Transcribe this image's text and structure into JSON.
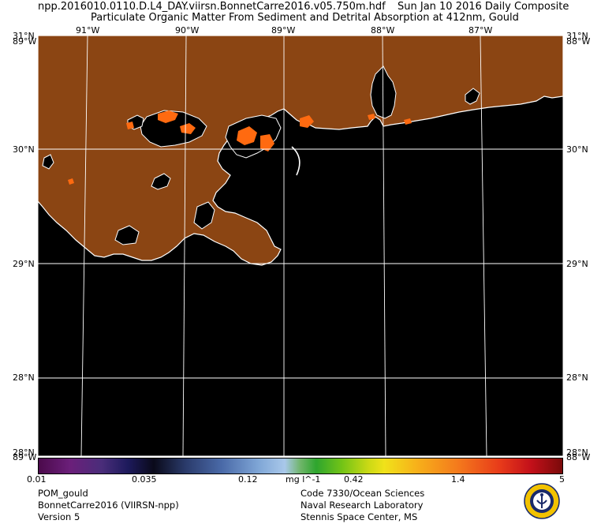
{
  "header": {
    "filename": "npp.2016010.0110.D.L4_DAY.viirsn.BonnetCarre2016.v05.750m.hdf",
    "date": "Sun Jan 10 2016 Daily Composite",
    "product": "Particulate Organic Matter From Sediment and Detrital Absorption at 412nm, Gould"
  },
  "map": {
    "lon_labels": [
      "91°W",
      "90°W",
      "89°W",
      "88°W",
      "87°W"
    ],
    "lat_labels": [
      "30°N",
      "29°N",
      "28°N"
    ],
    "corner_labels": {
      "top_left_lat": "31°N",
      "top_left_lon": "89°W",
      "top_right_lat": "31°N",
      "top_right_lon": "88°W",
      "bottom_left_lat": "28°N",
      "bottom_left_lon": "89°W",
      "bottom_right_lat": "28°N",
      "bottom_right_lon": "88°W"
    },
    "colors": {
      "land": "#8b4513",
      "water": "#000000",
      "coast": "#ffffff",
      "grid": "#ffffff",
      "high_pom": "#ff6a10"
    }
  },
  "colorbar": {
    "ticks": [
      "0.01",
      "0.035",
      "0.12",
      "0.42",
      "1.4",
      "5"
    ],
    "unit": "mg l^-1"
  },
  "footer": {
    "left": [
      "POM_gould",
      "BonnetCarre2016 (VIIRSN-npp)",
      "Version 5"
    ],
    "right": [
      "Code 7330/Ocean Sciences",
      "Naval Research Laboratory",
      "Stennis Space Center, MS"
    ]
  },
  "logo": {
    "name": "nrl-seal-icon"
  }
}
